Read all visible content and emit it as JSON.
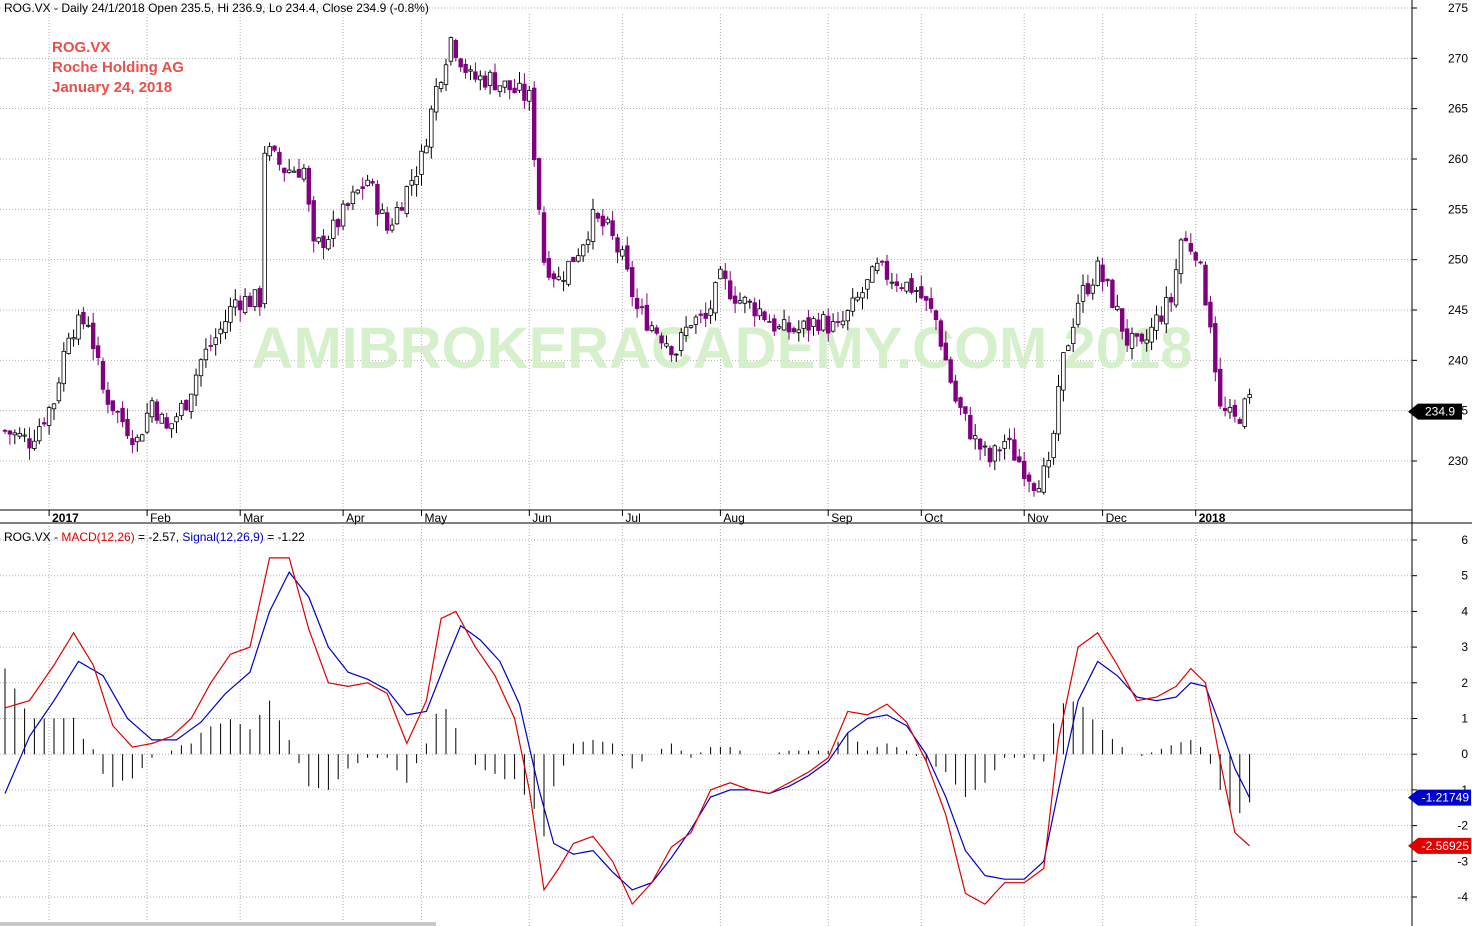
{
  "header": {
    "price_title": "ROG.VX - Daily 24/1/2018 Open 235.5, Hi 236.9, Lo 234.4, Close 234.9 (-0.8%)",
    "macd_prefix": "ROG.VX - ",
    "macd_name": "MACD(12,26)",
    "macd_value_text": " = -2.57, ",
    "signal_name": "Signal(12,26,9)",
    "signal_value_text": " = -1.22"
  },
  "stock_info": {
    "symbol": "ROG.VX",
    "company": "Roche Holding AG",
    "date": "January 24, 2018"
  },
  "watermark": "AMIBROKERACADEMY.COM  2018",
  "colors": {
    "up_candle": "#000000",
    "down_candle": "#800080",
    "macd_line": "#e00000",
    "signal_line": "#0000cc",
    "histogram": "#000000",
    "grid": "#b0b0b0",
    "label_red": "#e8504a"
  },
  "chart_data": [
    {
      "type": "candlestick",
      "y_ticks": [
        230,
        235,
        240,
        245,
        250,
        255,
        260,
        265,
        270,
        275
      ],
      "ylim": [
        225,
        276
      ],
      "months": [
        "2017",
        "Feb",
        "Mar",
        "Apr",
        "May",
        "Jun",
        "Jul",
        "Aug",
        "Sep",
        "Oct",
        "Nov",
        "Dec",
        "2018"
      ],
      "last_price_label": "234.9",
      "close_keypoints": [
        [
          0,
          233
        ],
        [
          5,
          232
        ],
        [
          10,
          236
        ],
        [
          13,
          243
        ],
        [
          17,
          244
        ],
        [
          20,
          237
        ],
        [
          24,
          234
        ],
        [
          27,
          232
        ],
        [
          30,
          236
        ],
        [
          33,
          233
        ],
        [
          37,
          236
        ],
        [
          40,
          240
        ],
        [
          44,
          243
        ],
        [
          47,
          246
        ],
        [
          52,
          246
        ],
        [
          53,
          261
        ],
        [
          57,
          259
        ],
        [
          61,
          259
        ],
        [
          63,
          251
        ],
        [
          67,
          253
        ],
        [
          71,
          256
        ],
        [
          74,
          258
        ],
        [
          78,
          253
        ],
        [
          81,
          256
        ],
        [
          85,
          260
        ],
        [
          88,
          267
        ],
        [
          91,
          272
        ],
        [
          95,
          268
        ],
        [
          99,
          268
        ],
        [
          103,
          267
        ],
        [
          107,
          266
        ],
        [
          110,
          250
        ],
        [
          113,
          248
        ],
        [
          117,
          251
        ],
        [
          120,
          254
        ],
        [
          123,
          253
        ],
        [
          126,
          250
        ],
        [
          129,
          245
        ],
        [
          133,
          243
        ],
        [
          137,
          241
        ],
        [
          140,
          244
        ],
        [
          143,
          244
        ],
        [
          146,
          248
        ],
        [
          150,
          246
        ],
        [
          154,
          245
        ],
        [
          158,
          243
        ],
        [
          162,
          243
        ],
        [
          166,
          244
        ],
        [
          170,
          243
        ],
        [
          174,
          246
        ],
        [
          178,
          249
        ],
        [
          182,
          248
        ],
        [
          186,
          247
        ],
        [
          190,
          244
        ],
        [
          194,
          236
        ],
        [
          198,
          232
        ],
        [
          201,
          230
        ],
        [
          204,
          232
        ],
        [
          207,
          230
        ],
        [
          210,
          228
        ],
        [
          213,
          229
        ],
        [
          216,
          240
        ],
        [
          219,
          246
        ],
        [
          223,
          249
        ],
        [
          226,
          246
        ],
        [
          229,
          242
        ],
        [
          232,
          241
        ],
        [
          235,
          244
        ],
        [
          238,
          246
        ],
        [
          240,
          252
        ],
        [
          243,
          251
        ],
        [
          246,
          244
        ],
        [
          248,
          235
        ],
        [
          251,
          234
        ],
        [
          254,
          236
        ]
      ]
    },
    {
      "type": "line",
      "series": [
        {
          "name": "MACD(12,26)",
          "points": [
            [
              0,
              1.3
            ],
            [
              5,
              1.5
            ],
            [
              10,
              2.5
            ],
            [
              14,
              3.4
            ],
            [
              18,
              2.5
            ],
            [
              22,
              0.8
            ],
            [
              26,
              0.2
            ],
            [
              30,
              0.3
            ],
            [
              34,
              0.5
            ],
            [
              38,
              1.0
            ],
            [
              42,
              2.0
            ],
            [
              46,
              2.8
            ],
            [
              50,
              3.0
            ],
            [
              54,
              5.5
            ],
            [
              58,
              5.5
            ],
            [
              62,
              3.5
            ],
            [
              66,
              2.0
            ],
            [
              70,
              1.9
            ],
            [
              74,
              2.0
            ],
            [
              78,
              1.7
            ],
            [
              82,
              0.3
            ],
            [
              86,
              1.5
            ],
            [
              89,
              3.8
            ],
            [
              92,
              4.0
            ],
            [
              96,
              3.0
            ],
            [
              100,
              2.2
            ],
            [
              104,
              1.0
            ],
            [
              107,
              -1.0
            ],
            [
              110,
              -3.8
            ],
            [
              113,
              -3.2
            ],
            [
              116,
              -2.5
            ],
            [
              120,
              -2.3
            ],
            [
              124,
              -3.0
            ],
            [
              128,
              -4.2
            ],
            [
              132,
              -3.6
            ],
            [
              136,
              -2.6
            ],
            [
              140,
              -2.2
            ],
            [
              144,
              -1.0
            ],
            [
              148,
              -0.8
            ],
            [
              152,
              -1.0
            ],
            [
              156,
              -1.1
            ],
            [
              160,
              -0.8
            ],
            [
              164,
              -0.5
            ],
            [
              168,
              -0.1
            ],
            [
              172,
              1.2
            ],
            [
              176,
              1.1
            ],
            [
              180,
              1.4
            ],
            [
              184,
              0.9
            ],
            [
              188,
              -0.2
            ],
            [
              192,
              -1.7
            ],
            [
              196,
              -3.9
            ],
            [
              200,
              -4.2
            ],
            [
              204,
              -3.6
            ],
            [
              208,
              -3.6
            ],
            [
              212,
              -3.2
            ],
            [
              215,
              0.4
            ],
            [
              219,
              3.0
            ],
            [
              223,
              3.4
            ],
            [
              227,
              2.5
            ],
            [
              231,
              1.5
            ],
            [
              235,
              1.6
            ],
            [
              239,
              1.9
            ],
            [
              242,
              2.4
            ],
            [
              245,
              2.0
            ],
            [
              248,
              -0.2
            ],
            [
              251,
              -2.2
            ],
            [
              254,
              -2.57
            ]
          ]
        },
        {
          "name": "Signal(12,26,9)",
          "points": [
            [
              0,
              -1.1
            ],
            [
              5,
              0.5
            ],
            [
              10,
              1.5
            ],
            [
              15,
              2.6
            ],
            [
              20,
              2.2
            ],
            [
              25,
              1.0
            ],
            [
              30,
              0.4
            ],
            [
              35,
              0.4
            ],
            [
              40,
              0.9
            ],
            [
              45,
              1.7
            ],
            [
              50,
              2.3
            ],
            [
              54,
              4.0
            ],
            [
              58,
              5.1
            ],
            [
              62,
              4.4
            ],
            [
              66,
              3.0
            ],
            [
              70,
              2.3
            ],
            [
              74,
              2.1
            ],
            [
              78,
              1.8
            ],
            [
              82,
              1.1
            ],
            [
              86,
              1.2
            ],
            [
              90,
              2.6
            ],
            [
              93,
              3.6
            ],
            [
              97,
              3.2
            ],
            [
              101,
              2.6
            ],
            [
              105,
              1.4
            ],
            [
              109,
              -1.0
            ],
            [
              112,
              -2.5
            ],
            [
              116,
              -2.8
            ],
            [
              120,
              -2.7
            ],
            [
              124,
              -3.3
            ],
            [
              128,
              -3.8
            ],
            [
              132,
              -3.6
            ],
            [
              136,
              -2.9
            ],
            [
              140,
              -2.1
            ],
            [
              144,
              -1.2
            ],
            [
              148,
              -1.0
            ],
            [
              152,
              -1.0
            ],
            [
              156,
              -1.1
            ],
            [
              160,
              -0.9
            ],
            [
              164,
              -0.6
            ],
            [
              168,
              -0.2
            ],
            [
              172,
              0.6
            ],
            [
              176,
              1.0
            ],
            [
              180,
              1.1
            ],
            [
              184,
              0.8
            ],
            [
              188,
              0.0
            ],
            [
              192,
              -1.2
            ],
            [
              196,
              -2.7
            ],
            [
              200,
              -3.4
            ],
            [
              204,
              -3.5
            ],
            [
              208,
              -3.5
            ],
            [
              212,
              -3.0
            ],
            [
              215,
              -1.0
            ],
            [
              219,
              1.5
            ],
            [
              223,
              2.6
            ],
            [
              227,
              2.2
            ],
            [
              231,
              1.6
            ],
            [
              235,
              1.5
            ],
            [
              239,
              1.6
            ],
            [
              242,
              2.0
            ],
            [
              245,
              1.9
            ],
            [
              248,
              0.8
            ],
            [
              251,
              -0.4
            ],
            [
              254,
              -1.22
            ]
          ]
        }
      ],
      "y_ticks": [
        -4,
        -3,
        -2,
        -1,
        0,
        1,
        2,
        3,
        4,
        5,
        6
      ],
      "ylim": [
        -4.8,
        6.4
      ],
      "macd_label": "-2.56925",
      "signal_label": "-1.21749"
    }
  ]
}
